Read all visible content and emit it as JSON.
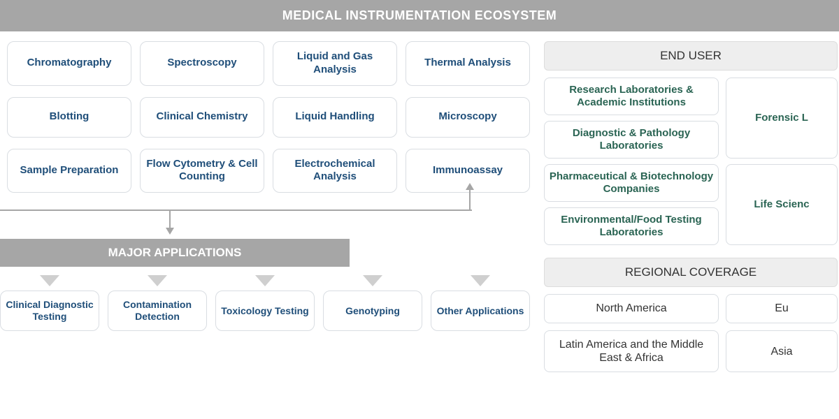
{
  "title": "MEDICAL INSTRUMENTATION ECOSYSTEM",
  "colors": {
    "header_bg": "#a6a6a6",
    "header_text": "#ffffff",
    "pill_border": "#d9dde2",
    "pill_text_blue": "#1f4e79",
    "enduser_text_green": "#2a6453",
    "side_header_bg": "#eeeeee",
    "side_header_text": "#333333",
    "arrow_gray": "#cfcfcf"
  },
  "techniques": [
    [
      "Chromatography",
      "Spectroscopy",
      "Liquid and Gas Analysis",
      "Thermal Analysis"
    ],
    [
      "Blotting",
      "Clinical Chemistry",
      "Liquid Handling",
      "Microscopy"
    ],
    [
      "Sample Preparation",
      "Flow Cytometry & Cell Counting",
      "Electrochemical Analysis",
      "Immunoassay"
    ]
  ],
  "applications_header": "MAJOR APPLICATIONS",
  "applications": [
    "Clinical Diagnostic Testing",
    "Contamination Detection",
    "Toxicology Testing",
    "Genotyping",
    "Other Applications"
  ],
  "end_user_header": "END USER",
  "end_users_left": [
    "Research Laboratories & Academic Institutions",
    "Diagnostic & Pathology Laboratories",
    "Pharmaceutical & Biotechnology Companies",
    "Environmental/Food Testing Laboratories"
  ],
  "end_users_right": [
    "Forensic L",
    "Life Scienc"
  ],
  "region_header": "REGIONAL COVERAGE",
  "regions": [
    [
      "North America",
      "Eu"
    ],
    [
      "Latin America and the Middle East & Africa",
      "Asia"
    ]
  ]
}
